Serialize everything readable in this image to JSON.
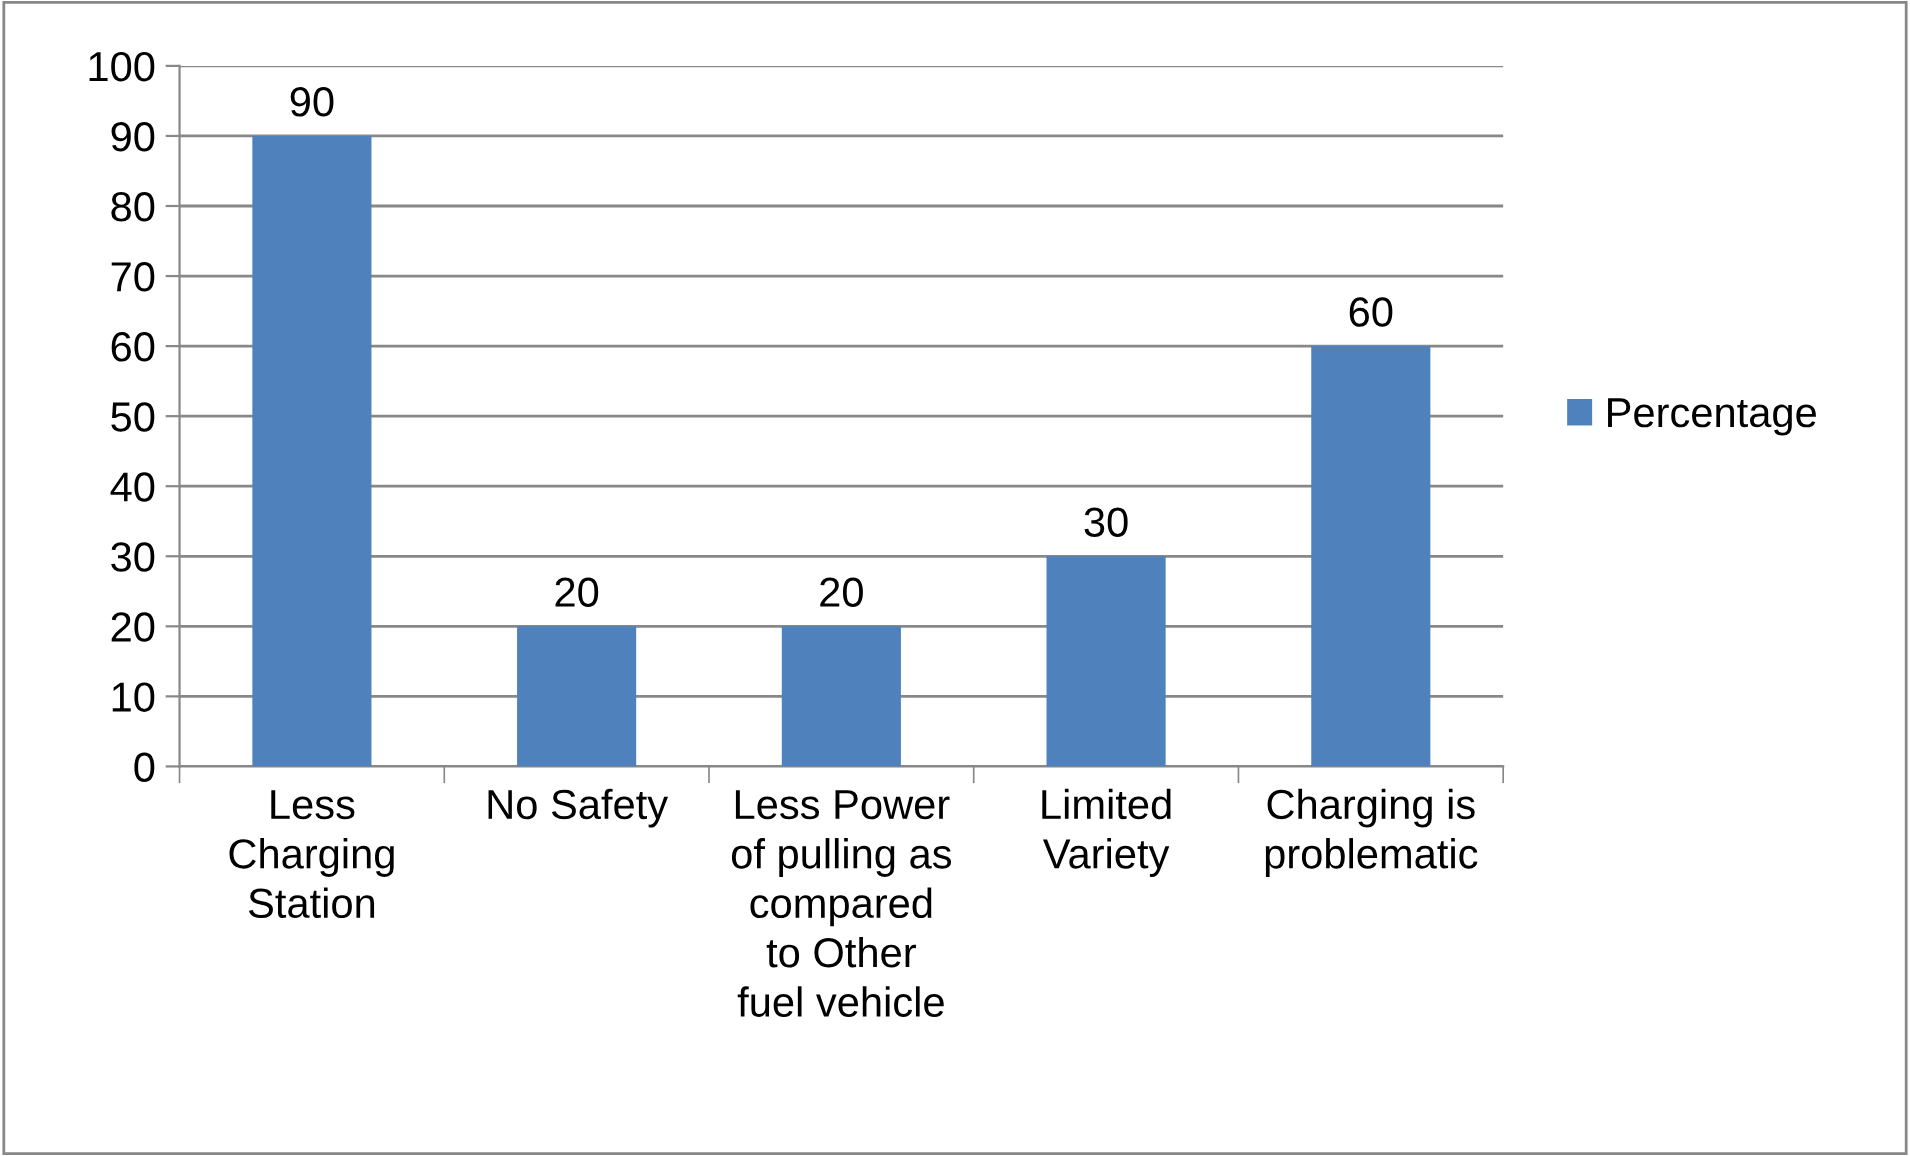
{
  "chart_data": {
    "type": "bar",
    "categories": [
      "Less\nCharging\nStation",
      "No Safety",
      "Less Power\nof pulling as\ncompared\nto Other\nfuel vehicle",
      "Limited\nVariety",
      "Charging is\nproblematic"
    ],
    "series": [
      {
        "name": "Percentage",
        "color": "#4f81bd",
        "values": [
          90,
          20,
          20,
          30,
          60
        ]
      }
    ],
    "ylim": [
      0,
      100
    ],
    "yticks": [
      0,
      10,
      20,
      30,
      40,
      50,
      60,
      70,
      80,
      90,
      100
    ],
    "grid": "y",
    "legend": "right",
    "data_labels": true
  }
}
